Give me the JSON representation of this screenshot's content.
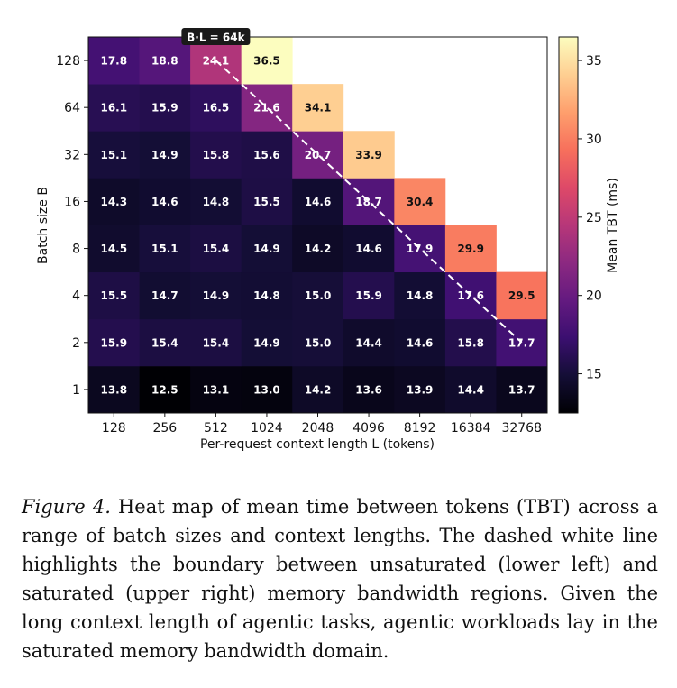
{
  "chart_data": {
    "type": "heatmap",
    "x_categories": [
      "128",
      "256",
      "512",
      "1024",
      "2048",
      "4096",
      "8192",
      "16384",
      "32768"
    ],
    "y_categories": [
      "1",
      "2",
      "4",
      "8",
      "16",
      "32",
      "64",
      "128"
    ],
    "xlabel": "Per-request context length L (tokens)",
    "ylabel": "Batch size  B",
    "values": [
      [
        13.8,
        12.5,
        13.1,
        13.0,
        14.2,
        13.6,
        13.9,
        14.4,
        13.7
      ],
      [
        15.9,
        15.4,
        15.4,
        14.9,
        15.0,
        14.4,
        14.6,
        15.8,
        17.7
      ],
      [
        15.5,
        14.7,
        14.9,
        14.8,
        15.0,
        15.9,
        14.8,
        17.6,
        29.5
      ],
      [
        14.5,
        15.1,
        15.4,
        14.9,
        14.2,
        14.6,
        17.9,
        29.9,
        null
      ],
      [
        14.3,
        14.6,
        14.8,
        15.5,
        14.6,
        18.7,
        30.4,
        null,
        null
      ],
      [
        15.1,
        14.9,
        15.8,
        15.6,
        20.7,
        33.9,
        null,
        null,
        null
      ],
      [
        16.1,
        15.9,
        16.5,
        21.6,
        34.1,
        null,
        null,
        null,
        null
      ],
      [
        17.8,
        18.8,
        24.1,
        36.5,
        null,
        null,
        null,
        null,
        null
      ]
    ],
    "colorbar": {
      "label": "Mean TBT (ms)",
      "ticks": [
        15,
        20,
        25,
        30,
        35
      ],
      "range": [
        12.5,
        36.5
      ],
      "colormap": "magma"
    },
    "boundary_label": "B·L = 64k",
    "boundary_line": {
      "style": "dashed",
      "color": "#ffffff",
      "from": {
        "L": "512",
        "B": "128"
      },
      "to": {
        "L": "32768",
        "B": "2"
      }
    }
  },
  "caption": {
    "label": "Figure 4.",
    "text": " Heat map of mean time between tokens (TBT) across a range of batch sizes and context lengths. The dashed white line highlights the boundary between unsaturated (lower left) and saturated (upper right) memory bandwidth regions. Given the long context length of agentic tasks, agentic workloads lay in the saturated memory bandwidth domain."
  }
}
